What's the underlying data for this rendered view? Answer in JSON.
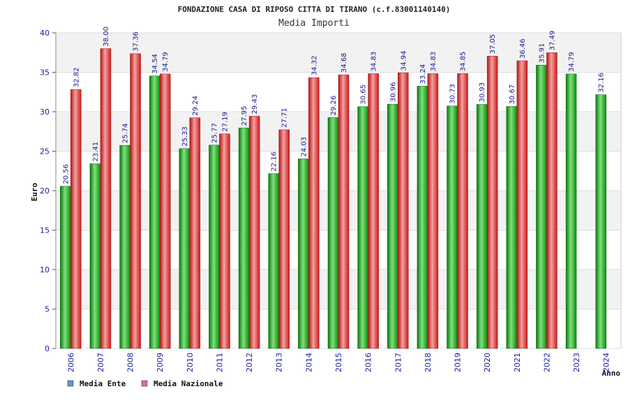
{
  "chart_data": {
    "type": "bar",
    "title": "FONDAZIONE CASA DI RIPOSO CITTA DI TIRANO (c.f.83001140140)",
    "subtitle": "Media Importi",
    "xlabel": "Anno",
    "ylabel": "Euro",
    "ylim": [
      0,
      40
    ],
    "yticks": [
      0,
      5,
      10,
      15,
      20,
      25,
      30,
      35,
      40
    ],
    "grid": true,
    "legend_position": "bottom-left",
    "categories": [
      "2006",
      "2007",
      "2008",
      "2009",
      "2010",
      "2011",
      "2012",
      "2013",
      "2014",
      "2015",
      "2016",
      "2017",
      "2018",
      "2019",
      "2020",
      "2021",
      "2022",
      "2023",
      "2024"
    ],
    "series": [
      {
        "name": "Media Ente",
        "color": "#22aa22",
        "legend_color": "#5b9bd5",
        "values": [
          20.56,
          23.41,
          25.74,
          34.54,
          25.33,
          25.77,
          27.95,
          22.16,
          24.03,
          29.26,
          30.65,
          30.96,
          33.24,
          30.73,
          30.93,
          30.67,
          35.91,
          34.79,
          32.16
        ],
        "labels": [
          "20.56",
          "23.41",
          "25.74",
          "34.54",
          "25.33",
          "25.77",
          "27.95",
          "22.16",
          "24.03",
          "29.26",
          "30.65",
          "30.96",
          "33.24",
          "30.73",
          "30.93",
          "30.67",
          "35.91",
          "34.79",
          "32.16"
        ]
      },
      {
        "name": "Media Nazionale",
        "color": "#dd2222",
        "legend_color": "#dd6fa0",
        "values": [
          32.82,
          38.0,
          37.36,
          34.79,
          29.24,
          27.19,
          29.43,
          27.71,
          34.32,
          34.68,
          34.83,
          34.94,
          34.83,
          34.85,
          37.05,
          36.46,
          37.49,
          null,
          null
        ],
        "labels": [
          "32.82",
          "38.00",
          "37.36",
          "34.79",
          "29.24",
          "27.19",
          "29.43",
          "27.71",
          "34.32",
          "34.68",
          "34.83",
          "34.94",
          "34.83",
          "34.85",
          "37.05",
          "36.46",
          "37.49",
          "",
          ""
        ]
      }
    ]
  }
}
